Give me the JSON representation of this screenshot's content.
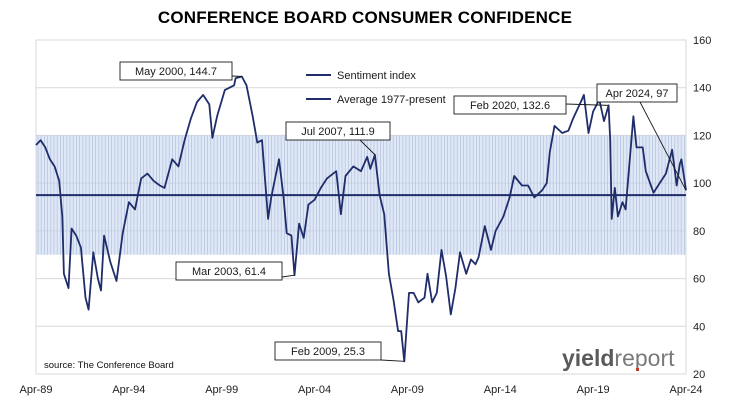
{
  "title": "CONFERENCE BOARD CONSUMER CONFIDENCE",
  "source": "source: The Conference Board",
  "logo": {
    "part1": "yield",
    "part2": "report"
  },
  "colors": {
    "line": "#1f2d6b",
    "band": "#c9d6ec",
    "band_line": "#aabde0",
    "logo_dark": "#5a5a5a",
    "logo_light": "#7a7a7a",
    "logo_dot": "#c0392b"
  },
  "chart_data": {
    "type": "line",
    "title": "CONFERENCE BOARD CONSUMER CONFIDENCE",
    "xlabel": "",
    "ylabel": "",
    "x_ticks": [
      "Apr-89",
      "Apr-94",
      "Apr-99",
      "Apr-04",
      "Apr-09",
      "Apr-14",
      "Apr-19",
      "Apr-24"
    ],
    "y_ticks": [
      20,
      40,
      60,
      80,
      100,
      120,
      140,
      160
    ],
    "ylim": [
      20,
      160
    ],
    "xlim": [
      "1989-04",
      "2024-04"
    ],
    "y_axis_side": "right",
    "shaded_band": [
      70,
      120
    ],
    "legend_position": "top-center",
    "series": [
      {
        "name": "Sentiment index",
        "points": [
          [
            "1989-04",
            116
          ],
          [
            "1989-07",
            118
          ],
          [
            "1989-10",
            115
          ],
          [
            "1990-01",
            110
          ],
          [
            "1990-04",
            107
          ],
          [
            "1990-07",
            101
          ],
          [
            "1990-09",
            86
          ],
          [
            "1990-10",
            62
          ],
          [
            "1991-01",
            56
          ],
          [
            "1991-03",
            81
          ],
          [
            "1991-06",
            78
          ],
          [
            "1991-09",
            73
          ],
          [
            "1991-12",
            52
          ],
          [
            "1992-02",
            47
          ],
          [
            "1992-05",
            71
          ],
          [
            "1992-08",
            60
          ],
          [
            "1992-10",
            55
          ],
          [
            "1992-12",
            78
          ],
          [
            "1993-04",
            67
          ],
          [
            "1993-08",
            59
          ],
          [
            "1993-12",
            79
          ],
          [
            "1994-04",
            92
          ],
          [
            "1994-08",
            89
          ],
          [
            "1994-12",
            102
          ],
          [
            "1995-04",
            104
          ],
          [
            "1995-08",
            101
          ],
          [
            "1995-12",
            99
          ],
          [
            "1996-03",
            98
          ],
          [
            "1996-08",
            110
          ],
          [
            "1996-12",
            107
          ],
          [
            "1997-04",
            118
          ],
          [
            "1997-08",
            127
          ],
          [
            "1997-12",
            134
          ],
          [
            "1998-04",
            137
          ],
          [
            "1998-08",
            133
          ],
          [
            "1998-10",
            119
          ],
          [
            "1999-01",
            128
          ],
          [
            "1999-06",
            139
          ],
          [
            "1999-12",
            141
          ],
          [
            "2000-01",
            144
          ],
          [
            "2000-05",
            144.7
          ],
          [
            "2000-08",
            141
          ],
          [
            "2000-12",
            128
          ],
          [
            "2001-03",
            117
          ],
          [
            "2001-06",
            118
          ],
          [
            "2001-10",
            85
          ],
          [
            "2001-12",
            94
          ],
          [
            "2002-05",
            110
          ],
          [
            "2002-08",
            94
          ],
          [
            "2002-10",
            79
          ],
          [
            "2003-01",
            78
          ],
          [
            "2003-03",
            61.4
          ],
          [
            "2003-06",
            83
          ],
          [
            "2003-09",
            77
          ],
          [
            "2003-12",
            91
          ],
          [
            "2004-04",
            93
          ],
          [
            "2004-08",
            98
          ],
          [
            "2004-12",
            102
          ],
          [
            "2005-06",
            105
          ],
          [
            "2005-09",
            87
          ],
          [
            "2005-12",
            103
          ],
          [
            "2006-05",
            107
          ],
          [
            "2006-10",
            105
          ],
          [
            "2007-02",
            111
          ],
          [
            "2007-04",
            106
          ],
          [
            "2007-07",
            111.9
          ],
          [
            "2007-10",
            95
          ],
          [
            "2008-01",
            87
          ],
          [
            "2008-04",
            62
          ],
          [
            "2008-07",
            51
          ],
          [
            "2008-10",
            38
          ],
          [
            "2008-12",
            38
          ],
          [
            "2009-02",
            25.3
          ],
          [
            "2009-05",
            54
          ],
          [
            "2009-08",
            54
          ],
          [
            "2009-11",
            50
          ],
          [
            "2010-03",
            52
          ],
          [
            "2010-05",
            62
          ],
          [
            "2010-08",
            50
          ],
          [
            "2010-11",
            54
          ],
          [
            "2011-02",
            72
          ],
          [
            "2011-05",
            61
          ],
          [
            "2011-08",
            45
          ],
          [
            "2011-11",
            56
          ],
          [
            "2012-02",
            71
          ],
          [
            "2012-06",
            62
          ],
          [
            "2012-09",
            68
          ],
          [
            "2012-12",
            66
          ],
          [
            "2013-02",
            69
          ],
          [
            "2013-06",
            82
          ],
          [
            "2013-10",
            72
          ],
          [
            "2014-01",
            80
          ],
          [
            "2014-06",
            86
          ],
          [
            "2014-10",
            94
          ],
          [
            "2015-01",
            103
          ],
          [
            "2015-06",
            99
          ],
          [
            "2015-10",
            99
          ],
          [
            "2016-02",
            94
          ],
          [
            "2016-07",
            97
          ],
          [
            "2016-10",
            100
          ],
          [
            "2016-12",
            113
          ],
          [
            "2017-03",
            124
          ],
          [
            "2017-08",
            121
          ],
          [
            "2017-12",
            122
          ],
          [
            "2018-03",
            127
          ],
          [
            "2018-08",
            134
          ],
          [
            "2018-10",
            137
          ],
          [
            "2019-01",
            121
          ],
          [
            "2019-04",
            130
          ],
          [
            "2019-08",
            135
          ],
          [
            "2019-11",
            126
          ],
          [
            "2020-02",
            132.6
          ],
          [
            "2020-03",
            118
          ],
          [
            "2020-04",
            85
          ],
          [
            "2020-06",
            98
          ],
          [
            "2020-08",
            86
          ],
          [
            "2020-11",
            92
          ],
          [
            "2021-01",
            89
          ],
          [
            "2021-06",
            128
          ],
          [
            "2021-08",
            115
          ],
          [
            "2021-12",
            115
          ],
          [
            "2022-02",
            105
          ],
          [
            "2022-07",
            96
          ],
          [
            "2022-11",
            100
          ],
          [
            "2023-03",
            104
          ],
          [
            "2023-07",
            114
          ],
          [
            "2023-10",
            99
          ],
          [
            "2023-12",
            108
          ],
          [
            "2024-01",
            110
          ],
          [
            "2024-04",
            97
          ]
        ]
      },
      {
        "name": "Average 1977-present",
        "value": 95
      }
    ],
    "annotations": [
      {
        "label": "May 2000, 144.7",
        "x": "2000-05",
        "y": 144.7
      },
      {
        "label": "Jul 2007, 111.9",
        "x": "2007-07",
        "y": 111.9
      },
      {
        "label": "Mar 2003, 61.4",
        "x": "2003-03",
        "y": 61.4
      },
      {
        "label": "Feb 2009, 25.3",
        "x": "2009-02",
        "y": 25.3
      },
      {
        "label": "Feb 2020, 132.6",
        "x": "2020-02",
        "y": 132.6
      },
      {
        "label": "Apr 2024, 97",
        "x": "2024-04",
        "y": 97
      }
    ]
  }
}
